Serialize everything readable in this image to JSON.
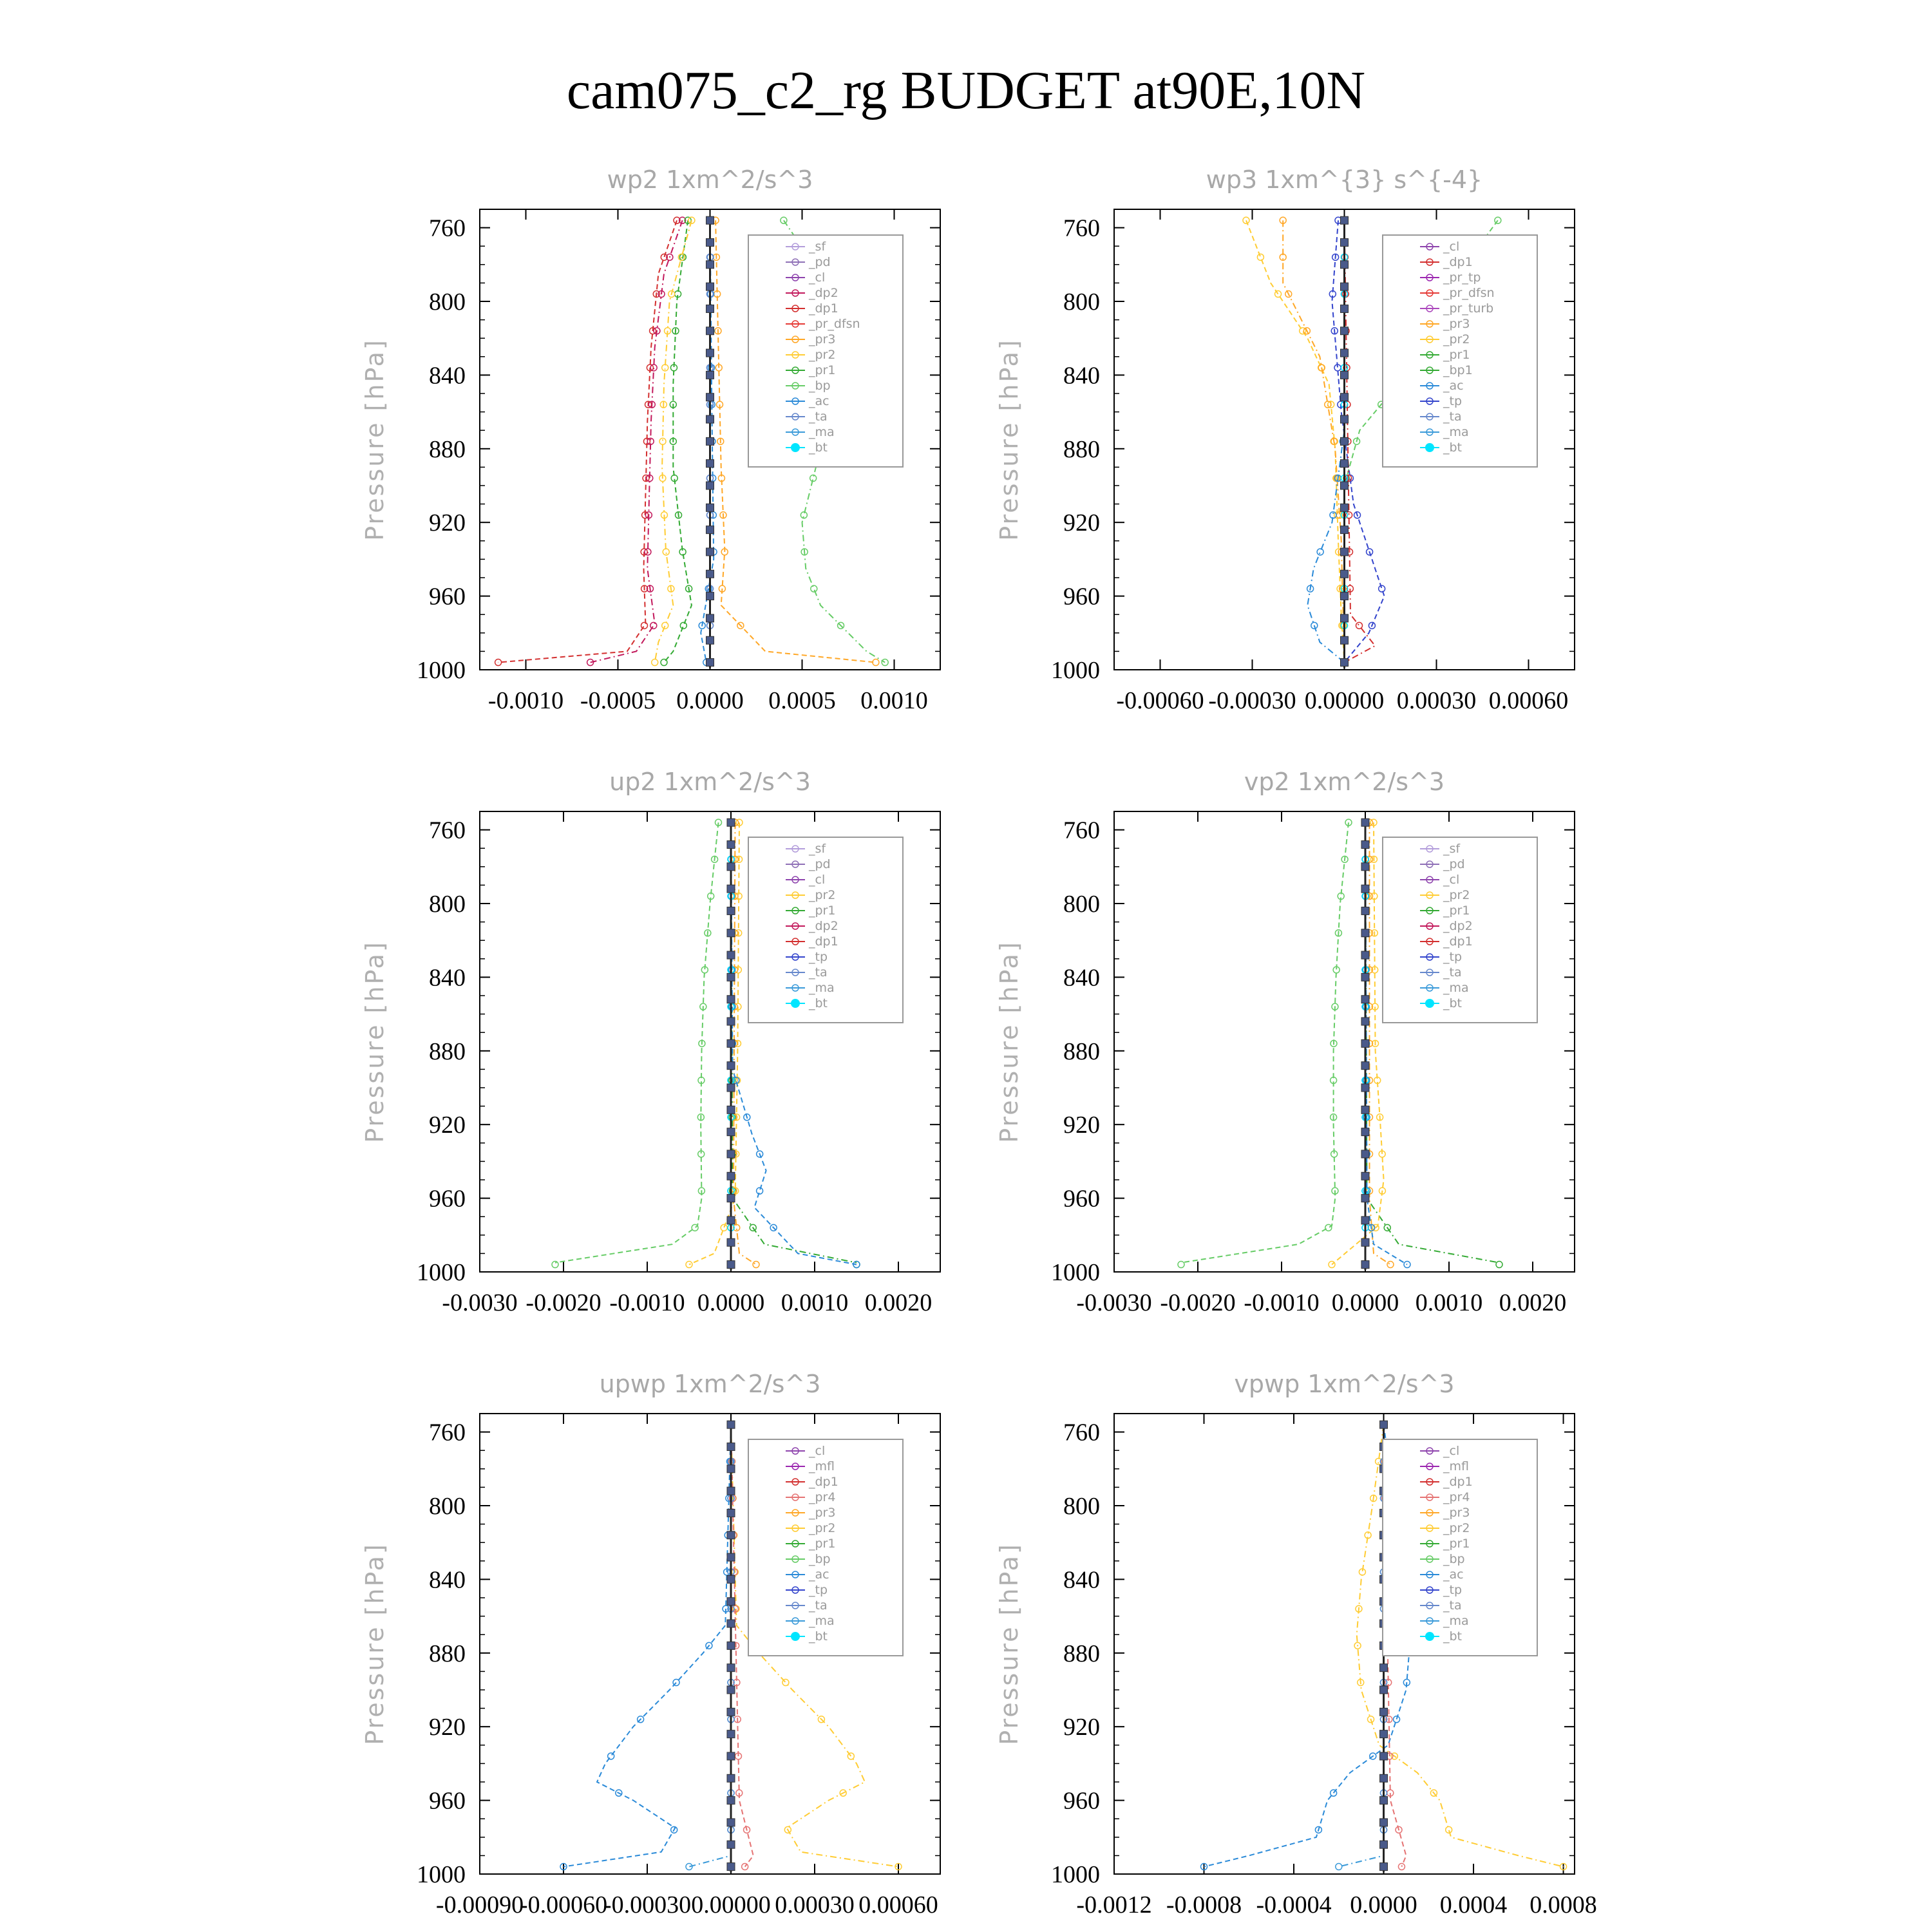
{
  "title": "cam075_c2_rg  BUDGET at90E,10N",
  "colors": {
    "sf": "#b39ddb",
    "pd": "#8e6fb6",
    "cl": "#8e44ad",
    "dp2": "#c2185b",
    "dp1": "#d32f2f",
    "pr_dfsn": "#e53935",
    "pr3": "#ffa726",
    "pr2": "#ffcc33",
    "pr1": "#33aa33",
    "bp": "#66cc66",
    "ac": "#2a8ad8",
    "tp": "#3344cc",
    "ta": "#6688cc",
    "ma": "#3a9ad9",
    "bt": "#00e5ff",
    "mfl": "#9c27b0",
    "pr4": "#e57373",
    "pr_tp": "#9c27b0",
    "pr_turb": "#ab47bc",
    "dp": "#7e57c2",
    "bp1": "#33aa33"
  },
  "chart_data": [
    {
      "type": "line",
      "title": "wp2   1xm^2/s^3",
      "ylabel": "Pressure [hPa]",
      "ylim": [
        1000,
        750
      ],
      "yticks": [
        760,
        800,
        840,
        880,
        920,
        960,
        1000
      ],
      "xlim": [
        -0.00125,
        0.00125
      ],
      "xticks": [
        -0.001,
        -0.0005,
        0.0,
        0.0005,
        0.001
      ],
      "xtick_labels": [
        "-0.0010",
        "-0.0005",
        "0.0000",
        "0.0005",
        "0.0010"
      ],
      "legend": [
        "_sf",
        "_pd",
        "_cl",
        "_dp2",
        "_dp1",
        "_pr_dfsn",
        "_pr3",
        "_pr2",
        "_pr1",
        "_bp",
        "_ac",
        "_ta",
        "_ma",
        "_bt"
      ],
      "series": [
        {
          "name": "_dp1",
          "color": "#d32f2f",
          "p": [
            756,
            785,
            825,
            865,
            905,
            945,
            975,
            990,
            996
          ],
          "v": [
            -0.00018,
            -0.00028,
            -0.00032,
            -0.00034,
            -0.00035,
            -0.00036,
            -0.00035,
            -0.00045,
            -0.00115
          ]
        },
        {
          "name": "_dp2",
          "color": "#c2185b",
          "p": [
            756,
            785,
            825,
            865,
            905,
            945,
            975,
            990,
            996
          ],
          "v": [
            -0.00015,
            -0.00025,
            -0.0003,
            -0.00032,
            -0.00033,
            -0.00034,
            -0.0003,
            -0.0004,
            -0.00065
          ]
        },
        {
          "name": "_pr1",
          "color": "#33aa33",
          "p": [
            756,
            800,
            845,
            890,
            935,
            965,
            990,
            996
          ],
          "v": [
            -0.00012,
            -0.00018,
            -0.0002,
            -0.0002,
            -0.00015,
            -0.0001,
            -0.0002,
            -0.00025
          ]
        },
        {
          "name": "_pr2",
          "color": "#ffcc33",
          "p": [
            756,
            800,
            845,
            890,
            935,
            965,
            985,
            996
          ],
          "v": [
            -0.0001,
            -0.00022,
            -0.00025,
            -0.00026,
            -0.00024,
            -0.0002,
            -0.00028,
            -0.0003
          ]
        },
        {
          "name": "_pr3",
          "color": "#ffa726",
          "p": [
            756,
            800,
            845,
            890,
            935,
            965,
            990,
            996
          ],
          "v": [
            3e-05,
            4e-05,
            5e-05,
            6e-05,
            8e-05,
            6e-05,
            0.0003,
            0.0009
          ]
        },
        {
          "name": "_bp",
          "color": "#66cc66",
          "p": [
            756,
            800,
            845,
            880,
            920,
            945,
            965,
            990,
            996
          ],
          "v": [
            0.0004,
            0.0007,
            0.00075,
            0.0006,
            0.0005,
            0.00052,
            0.0006,
            0.00085,
            0.00095
          ]
        },
        {
          "name": "_ac",
          "color": "#2a8ad8",
          "p": [
            756,
            860,
            940,
            980,
            996
          ],
          "v": [
            0.0,
            1e-05,
            2e-05,
            -5e-05,
            -2e-05
          ]
        },
        {
          "name": "_bt",
          "color": "#00e5ff",
          "p": [
            756,
            996
          ],
          "v": [
            0.0,
            0.0
          ]
        },
        {
          "name": "_pd",
          "color": "#8e6fb6",
          "p": [
            756,
            996
          ],
          "v": [
            0.0,
            0.0
          ]
        },
        {
          "name": "_ta",
          "color": "#6688cc",
          "p": [
            756,
            996
          ],
          "v": [
            0.0,
            0.0
          ]
        }
      ]
    },
    {
      "type": "line",
      "title": "wp3   1xm^{3} s^{-4}",
      "ylabel": "Pressure [hPa]",
      "ylim": [
        1000,
        750
      ],
      "yticks": [
        760,
        800,
        840,
        880,
        920,
        960,
        1000
      ],
      "xlim": [
        -0.00075,
        0.00075
      ],
      "xticks": [
        -0.0006,
        -0.0003,
        0.0,
        0.0003,
        0.0006
      ],
      "xtick_labels": [
        "-0.00060",
        "-0.00030",
        "0.00000",
        "0.00030",
        "0.00060"
      ],
      "legend": [
        "_cl",
        "_dp1",
        "_pr_tp",
        "_pr_dfsn",
        "_pr_turb",
        "_pr3",
        "_pr2",
        "_pr1",
        "_bp1",
        "_ac",
        "_tp",
        "_ta",
        "_ma",
        "_bt"
      ],
      "series": [
        {
          "name": "_pr2",
          "color": "#ffcc33",
          "p": [
            756,
            790,
            820,
            845,
            880,
            930,
            970,
            996
          ],
          "v": [
            -0.00032,
            -0.00024,
            -0.00012,
            -5e-05,
            -3e-05,
            -2e-05,
            -1e-05,
            0.0
          ]
        },
        {
          "name": "_pr3",
          "color": "#ffa726",
          "p": [
            756,
            790,
            830,
            880,
            930,
            996
          ],
          "v": [
            -0.0002,
            -0.0002,
            -8e-05,
            -3e-05,
            -1e-05,
            0.0
          ]
        },
        {
          "name": "_ac",
          "color": "#66cc66",
          "p": [
            756,
            790,
            840,
            870,
            900,
            940,
            996
          ],
          "v": [
            0.0005,
            0.00035,
            0.0002,
            5e-05,
            0.0,
            0.0,
            0.0
          ]
        },
        {
          "name": "_tp",
          "color": "#2a8ad8",
          "p": [
            756,
            870,
            920,
            945,
            965,
            985,
            996
          ],
          "v": [
            0.0,
            0.0,
            -4e-05,
            -0.0001,
            -0.00012,
            -8e-05,
            0.0
          ]
        },
        {
          "name": "_ta",
          "color": "#3344cc",
          "p": [
            756,
            800,
            860,
            910,
            935,
            960,
            980,
            996
          ],
          "v": [
            -2e-05,
            -4e-05,
            -1e-05,
            3e-05,
            8e-05,
            0.00013,
            8e-05,
            0.0
          ]
        },
        {
          "name": "_dp1",
          "color": "#d32f2f",
          "p": [
            756,
            970,
            987,
            996
          ],
          "v": [
            0.0,
            2e-05,
            0.0001,
            0.0
          ]
        },
        {
          "name": "_bt",
          "color": "#00e5ff",
          "p": [
            756,
            996
          ],
          "v": [
            0.0,
            0.0
          ]
        }
      ]
    },
    {
      "type": "line",
      "title": "up2   1xm^2/s^3",
      "ylabel": "Pressure [hPa]",
      "ylim": [
        1000,
        750
      ],
      "yticks": [
        760,
        800,
        840,
        880,
        920,
        960,
        1000
      ],
      "xlim": [
        -0.003,
        0.0025
      ],
      "xticks": [
        -0.003,
        -0.002,
        -0.001,
        0.0,
        0.001,
        0.002
      ],
      "xtick_labels": [
        "-0.0030",
        "-0.0020",
        "-0.0010",
        "0.0000",
        "0.0010",
        "0.0020"
      ],
      "legend": [
        "_sf",
        "_pd",
        "_cl",
        "_pr2",
        "_pr1",
        "_dp2",
        "_dp1",
        "_tp",
        "_ta",
        "_ma",
        "_bt"
      ],
      "series": [
        {
          "name": "_dp1",
          "color": "#66cc66",
          "p": [
            756,
            800,
            840,
            880,
            920,
            960,
            975,
            985,
            995
          ],
          "v": [
            -0.00015,
            -0.00025,
            -0.00032,
            -0.00035,
            -0.00036,
            -0.00035,
            -0.0004,
            -0.0007,
            -0.0021
          ]
        },
        {
          "name": "_dp2",
          "color": "#33aa33",
          "p": [
            756,
            960,
            985,
            995
          ],
          "v": [
            0.0,
            2e-05,
            0.0004,
            0.0015
          ]
        },
        {
          "name": "_pr1",
          "color": "#ffcc33",
          "p": [
            756,
            880,
            960,
            990,
            996
          ],
          "v": [
            0.0001,
            8e-05,
            5e-05,
            -0.0002,
            -0.0005
          ]
        },
        {
          "name": "_pr2",
          "color": "#ffa726",
          "p": [
            756,
            960,
            990,
            996
          ],
          "v": [
            5e-05,
            3e-05,
            0.0001,
            0.0003
          ]
        },
        {
          "name": "_tp",
          "color": "#2a8ad8",
          "p": [
            756,
            890,
            925,
            945,
            965,
            990,
            996
          ],
          "v": [
            0.0,
            2e-05,
            0.00025,
            0.00042,
            0.00028,
            0.0008,
            0.0015
          ]
        },
        {
          "name": "_ta",
          "color": "#3344cc",
          "p": [
            756,
            996
          ],
          "v": [
            0.0,
            0.0
          ]
        },
        {
          "name": "_bt",
          "color": "#00e5ff",
          "p": [
            756,
            996
          ],
          "v": [
            0.0,
            0.0
          ]
        }
      ]
    },
    {
      "type": "line",
      "title": "vp2   1xm^2/s^3",
      "ylabel": "Pressure [hPa]",
      "ylim": [
        1000,
        750
      ],
      "yticks": [
        760,
        800,
        840,
        880,
        920,
        960,
        1000
      ],
      "xlim": [
        -0.003,
        0.0025
      ],
      "xticks": [
        -0.003,
        -0.002,
        -0.001,
        0.0,
        0.001,
        0.002
      ],
      "xtick_labels": [
        "-0.0030",
        "-0.0020",
        "-0.0010",
        "0.0000",
        "0.0010",
        "0.0020"
      ],
      "legend": [
        "_sf",
        "_pd",
        "_cl",
        "_pr2",
        "_pr1",
        "_dp2",
        "_dp1",
        "_tp",
        "_ta",
        "_ma",
        "_bt"
      ],
      "series": [
        {
          "name": "_dp1",
          "color": "#66cc66",
          "p": [
            756,
            800,
            840,
            880,
            920,
            960,
            975,
            985,
            995
          ],
          "v": [
            -0.0002,
            -0.0003,
            -0.00035,
            -0.00038,
            -0.00038,
            -0.00036,
            -0.0004,
            -0.0008,
            -0.0022
          ]
        },
        {
          "name": "_dp2",
          "color": "#33aa33",
          "p": [
            756,
            960,
            985,
            995
          ],
          "v": [
            0.0,
            2e-05,
            0.0004,
            0.0016
          ]
        },
        {
          "name": "_pr1",
          "color": "#ffcc33",
          "p": [
            756,
            880,
            920,
            950,
            975,
            996
          ],
          "v": [
            0.0001,
            0.00012,
            0.00018,
            0.00022,
            0.00015,
            -0.0004
          ]
        },
        {
          "name": "_pr2",
          "color": "#ffa726",
          "p": [
            756,
            960,
            990,
            996
          ],
          "v": [
            5e-05,
            5e-05,
            0.0001,
            0.0003
          ]
        },
        {
          "name": "_tp",
          "color": "#2a8ad8",
          "p": [
            756,
            960,
            985,
            996
          ],
          "v": [
            0.0,
            2e-05,
            0.0001,
            0.0005
          ]
        },
        {
          "name": "_ta",
          "color": "#3344cc",
          "p": [
            756,
            996
          ],
          "v": [
            0.0,
            0.0
          ]
        },
        {
          "name": "_bt",
          "color": "#00e5ff",
          "p": [
            756,
            996
          ],
          "v": [
            0.0,
            0.0
          ]
        }
      ]
    },
    {
      "type": "line",
      "title": "upwp   1xm^2/s^3",
      "ylabel": "Pressure [hPa]",
      "ylim": [
        1000,
        750
      ],
      "yticks": [
        760,
        800,
        840,
        880,
        920,
        960,
        1000
      ],
      "xlim": [
        -0.0009,
        0.00075
      ],
      "xticks": [
        -0.0009,
        -0.0006,
        -0.0003,
        0.0,
        0.0003,
        0.0006
      ],
      "xtick_labels": [
        "-0.00090",
        "-0.00060",
        "-0.00030",
        "0.00000",
        "0.00030",
        "0.00060"
      ],
      "legend": [
        "_cl",
        "_mfl",
        "_dp1",
        "_pr4",
        "_pr3",
        "_pr2",
        "_pr1",
        "_bp",
        "_ac",
        "_tp",
        "_ta",
        "_ma",
        "_bt"
      ],
      "series": [
        {
          "name": "_tp",
          "color": "#2a8ad8",
          "p": [
            756,
            865,
            880,
            900,
            920,
            940,
            950,
            960,
            975,
            988,
            996
          ],
          "v": [
            0.0,
            -2e-05,
            -0.0001,
            -0.00022,
            -0.00035,
            -0.00045,
            -0.00048,
            -0.00035,
            -0.0002,
            -0.00025,
            -0.0006
          ]
        },
        {
          "name": "_pr1",
          "color": "#ffcc33",
          "p": [
            756,
            865,
            880,
            900,
            920,
            940,
            950,
            960,
            975,
            988,
            996
          ],
          "v": [
            0.0,
            2e-05,
            0.0001,
            0.00022,
            0.00035,
            0.00045,
            0.00048,
            0.00035,
            0.0002,
            0.00025,
            0.0006
          ]
        },
        {
          "name": "_pr4",
          "color": "#e57373",
          "p": [
            756,
            960,
            990,
            996
          ],
          "v": [
            0.0,
            3e-05,
            8e-05,
            5e-05
          ]
        },
        {
          "name": "_ac",
          "color": "#3a9ad9",
          "p": [
            756,
            990,
            996
          ],
          "v": [
            0.0,
            0.0,
            -0.00015
          ]
        },
        {
          "name": "_bt",
          "color": "#00e5ff",
          "p": [
            756,
            996
          ],
          "v": [
            0.0,
            0.0
          ]
        },
        {
          "name": "_ta",
          "color": "#6688cc",
          "p": [
            756,
            996
          ],
          "v": [
            0.0,
            0.0
          ]
        }
      ]
    },
    {
      "type": "line",
      "title": "vpwp   1xm^2/s^3",
      "ylabel": "Pressure [hPa]",
      "ylim": [
        1000,
        750
      ],
      "yticks": [
        760,
        800,
        840,
        880,
        920,
        960,
        1000
      ],
      "xlim": [
        -0.0012,
        0.00085
      ],
      "xticks": [
        -0.0012,
        -0.0008,
        -0.0004,
        0.0,
        0.0004,
        0.0008
      ],
      "xtick_labels": [
        "-0.0012",
        "-0.0008",
        "-0.0004",
        "0.0000",
        "0.0004",
        "0.0008"
      ],
      "legend": [
        "_cl",
        "_mfl",
        "_dp1",
        "_pr4",
        "_pr3",
        "_pr2",
        "_pr1",
        "_bp",
        "_ac",
        "_tp",
        "_ta",
        "_ma",
        "_bt"
      ],
      "series": [
        {
          "name": "_tp",
          "color": "#2a8ad8",
          "p": [
            756,
            800,
            840,
            870,
            900,
            930,
            945,
            960,
            980,
            990,
            996
          ],
          "v": [
            0.0,
            5e-05,
            0.0001,
            0.00012,
            0.0001,
            2e-05,
            -0.00015,
            -0.00025,
            -0.0003,
            -0.0006,
            -0.0008
          ]
        },
        {
          "name": "_pr1",
          "color": "#ffcc33",
          "p": [
            756,
            800,
            840,
            870,
            900,
            930,
            945,
            960,
            980,
            990,
            996
          ],
          "v": [
            0.0,
            -5e-05,
            -0.0001,
            -0.00012,
            -0.0001,
            -2e-05,
            0.00015,
            0.00025,
            0.0003,
            0.0006,
            0.0008
          ]
        },
        {
          "name": "_pr4",
          "color": "#e57373",
          "p": [
            756,
            960,
            990,
            996
          ],
          "v": [
            0.0,
            3e-05,
            0.0001,
            8e-05
          ]
        },
        {
          "name": "_ac",
          "color": "#3a9ad9",
          "p": [
            756,
            990,
            996
          ],
          "v": [
            0.0,
            0.0,
            -0.0002
          ]
        },
        {
          "name": "_bt",
          "color": "#00e5ff",
          "p": [
            756,
            996
          ],
          "v": [
            0.0,
            0.0
          ]
        },
        {
          "name": "_ta",
          "color": "#6688cc",
          "p": [
            756,
            996
          ],
          "v": [
            0.0,
            0.0
          ]
        }
      ]
    }
  ]
}
